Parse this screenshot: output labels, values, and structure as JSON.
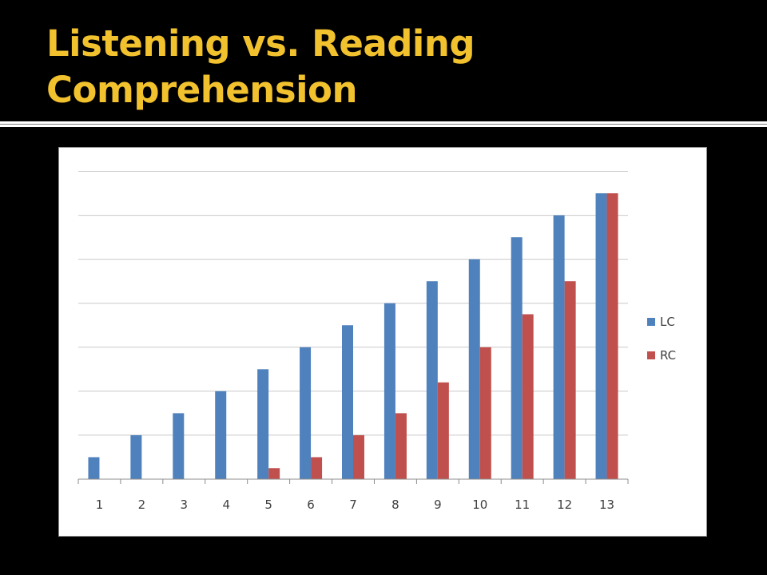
{
  "slide": {
    "title": "Listening vs. Reading Comprehension"
  },
  "chart_data": {
    "type": "bar",
    "categories": [
      "1",
      "2",
      "3",
      "4",
      "5",
      "6",
      "7",
      "8",
      "9",
      "10",
      "11",
      "12",
      "13"
    ],
    "series": [
      {
        "name": "LC",
        "color": "#4f81bd",
        "values": [
          1,
          2,
          3,
          4,
          5,
          6,
          7,
          8,
          9,
          10,
          11,
          12,
          13
        ]
      },
      {
        "name": "RC",
        "color": "#c0504d",
        "values": [
          0,
          0,
          0,
          0,
          0.5,
          1,
          2,
          3,
          4.4,
          6,
          7.5,
          9,
          13
        ]
      }
    ],
    "ylim": [
      0,
      14.2
    ],
    "grid": true,
    "y_tick_labels_shown": false,
    "legend_position": "right"
  }
}
